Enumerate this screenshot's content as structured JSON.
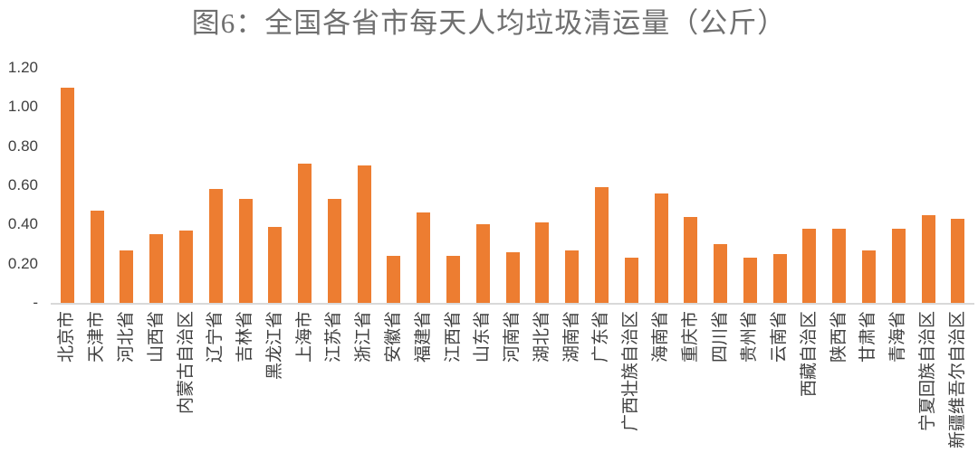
{
  "title": "图6：全国各省市每天人均垃圾清运量（公斤）",
  "colors": {
    "bar": "#ED7D31",
    "title_text": "#6F6F6F",
    "axis_text": "#3F3F3F",
    "axis_line": "#D9D9D9",
    "background": "#FFFFFF"
  },
  "chart_data": {
    "type": "bar",
    "title": "图6：全国各省市每天人均垃圾清运量（公斤）",
    "categories": [
      "北京市",
      "天津市",
      "河北省",
      "山西省",
      "内蒙古自治区",
      "辽宁省",
      "吉林省",
      "黑龙江省",
      "上海市",
      "江苏省",
      "浙江省",
      "安徽省",
      "福建省",
      "江西省",
      "山东省",
      "河南省",
      "湖北省",
      "湖南省",
      "广东省",
      "广西壮族自治区",
      "海南省",
      "重庆市",
      "四川省",
      "贵州省",
      "云南省",
      "西藏自治区",
      "陕西省",
      "甘肃省",
      "青海省",
      "宁夏回族自治区",
      "新疆维吾尔自治区"
    ],
    "values": [
      1.1,
      0.47,
      0.27,
      0.35,
      0.37,
      0.58,
      0.53,
      0.39,
      0.71,
      0.53,
      0.7,
      0.24,
      0.46,
      0.24,
      0.4,
      0.26,
      0.41,
      0.27,
      0.59,
      0.23,
      0.56,
      0.44,
      0.3,
      0.23,
      0.25,
      0.38,
      0.38,
      0.27,
      0.38,
      0.45,
      0.43
    ],
    "xlabel": "",
    "ylabel": "",
    "ylim": [
      0,
      1.2
    ],
    "ytick_values": [
      1.2,
      1.0,
      0.8,
      0.6,
      0.4,
      0.2,
      0
    ],
    "ytick_labels": [
      "1.20",
      "1.00",
      "0.80",
      "0.60",
      "0.40",
      "0.20",
      "-"
    ],
    "grid": false,
    "legend": false,
    "bar_orientation": "vertical",
    "x_label_rotation": -90
  }
}
